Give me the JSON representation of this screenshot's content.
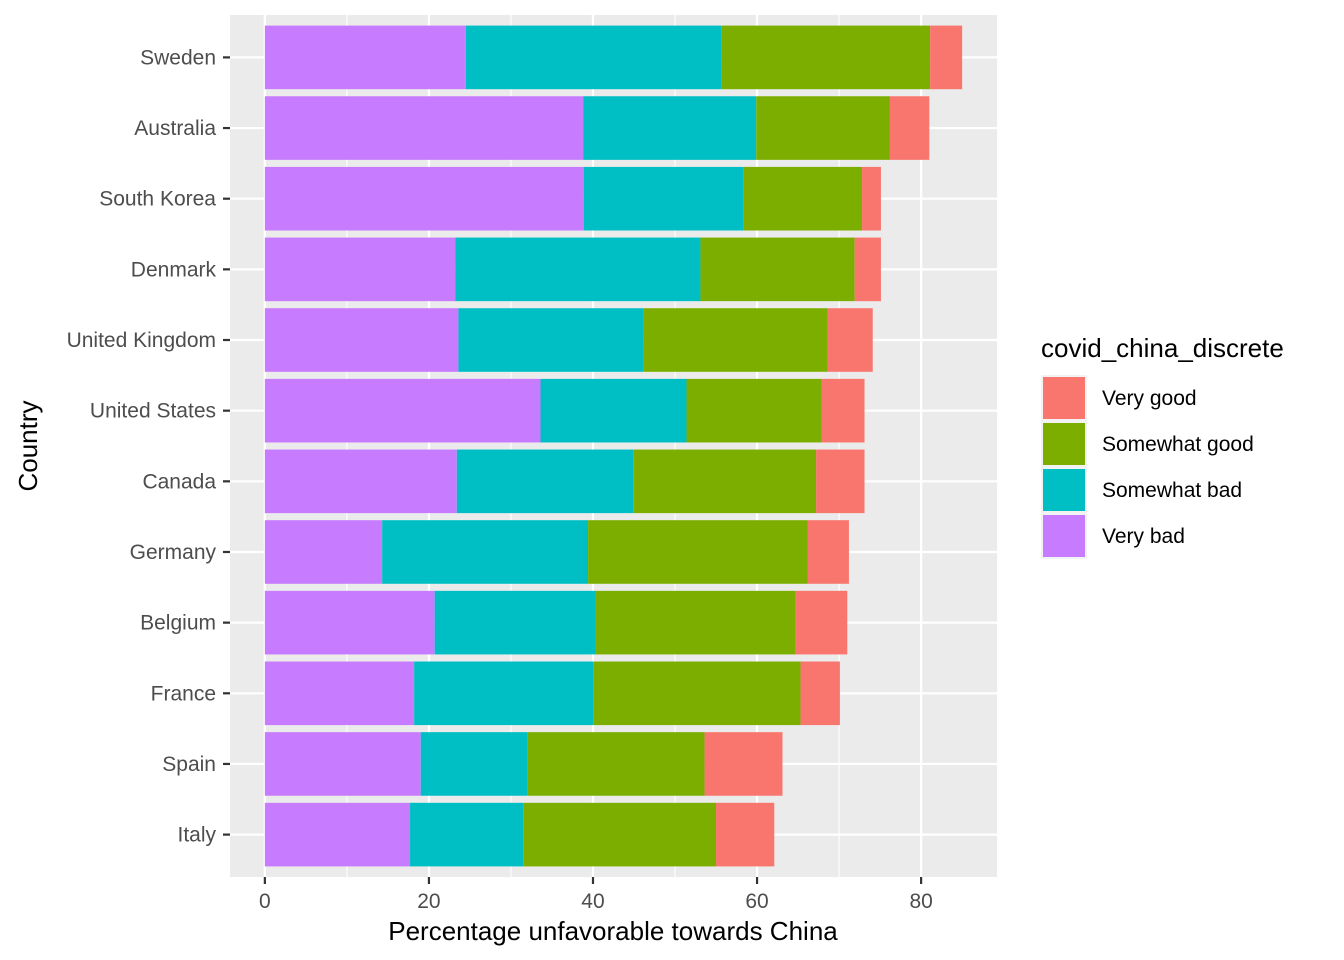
{
  "chart_data": {
    "type": "bar",
    "orientation": "horizontal",
    "stacked": true,
    "xlabel": "Percentage unfavorable towards China",
    "ylabel": "Country",
    "xlim": [
      -4.25,
      89.25
    ],
    "xticks": [
      0,
      20,
      40,
      60,
      80
    ],
    "grid": true,
    "legend_position": "right",
    "legend_title": "covid_china_discrete",
    "categories": [
      "Sweden",
      "Australia",
      "South Korea",
      "Denmark",
      "United Kingdom",
      "United States",
      "Canada",
      "Germany",
      "Belgium",
      "France",
      "Spain",
      "Italy"
    ],
    "series": [
      {
        "name": "Very bad",
        "color": "#C77CFF",
        "values": [
          24.5,
          38.8,
          38.9,
          23.2,
          23.6,
          33.6,
          23.4,
          14.3,
          20.7,
          18.2,
          19.0,
          17.7
        ]
      },
      {
        "name": "Somewhat bad",
        "color": "#00BFC4",
        "values": [
          31.2,
          21.1,
          19.4,
          29.9,
          22.6,
          17.8,
          21.5,
          25.1,
          19.6,
          21.9,
          13.0,
          13.8
        ]
      },
      {
        "name": "Somewhat good",
        "color": "#7CAE00",
        "values": [
          25.4,
          16.3,
          14.5,
          18.8,
          22.4,
          16.5,
          22.3,
          26.8,
          24.4,
          25.2,
          21.6,
          23.5
        ]
      },
      {
        "name": "Very good",
        "color": "#F8766D",
        "values": [
          3.9,
          4.8,
          2.3,
          3.2,
          5.5,
          5.2,
          5.9,
          5.0,
          6.3,
          4.8,
          9.5,
          7.1
        ]
      }
    ],
    "legend_order": [
      "Very good",
      "Somewhat good",
      "Somewhat bad",
      "Very bad"
    ],
    "panel_background": "#EBEBEB",
    "grid_color": "#FFFFFF"
  }
}
